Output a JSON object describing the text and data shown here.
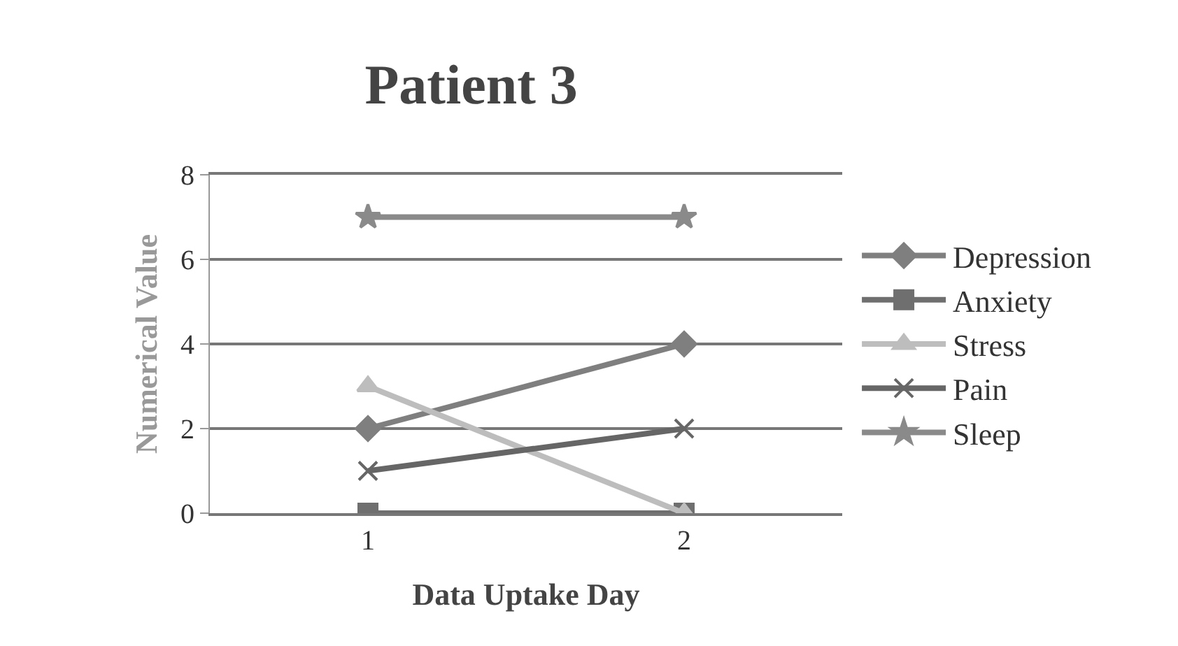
{
  "chart_data": {
    "type": "line",
    "title": "Patient 3",
    "xlabel": "Data Uptake Day",
    "ylabel": "Numerical Value",
    "categories": [
      "1",
      "2"
    ],
    "ylim": [
      0,
      8
    ],
    "yticks": [
      0,
      2,
      4,
      6,
      8
    ],
    "grid": "y",
    "legend": "right",
    "series": [
      {
        "name": "Depression",
        "color": "#7f7f7f",
        "marker": "diamond",
        "values": [
          2,
          4
        ]
      },
      {
        "name": "Anxiety",
        "color": "#6f6f6f",
        "marker": "square",
        "values": [
          0,
          0
        ]
      },
      {
        "name": "Stress",
        "color": "#bdbdbd",
        "marker": "triangle",
        "values": [
          3,
          0
        ]
      },
      {
        "name": "Pain",
        "color": "#666666",
        "marker": "cross",
        "values": [
          1,
          2
        ]
      },
      {
        "name": "Sleep",
        "color": "#8a8a8a",
        "marker": "star",
        "values": [
          7,
          7
        ]
      }
    ]
  }
}
